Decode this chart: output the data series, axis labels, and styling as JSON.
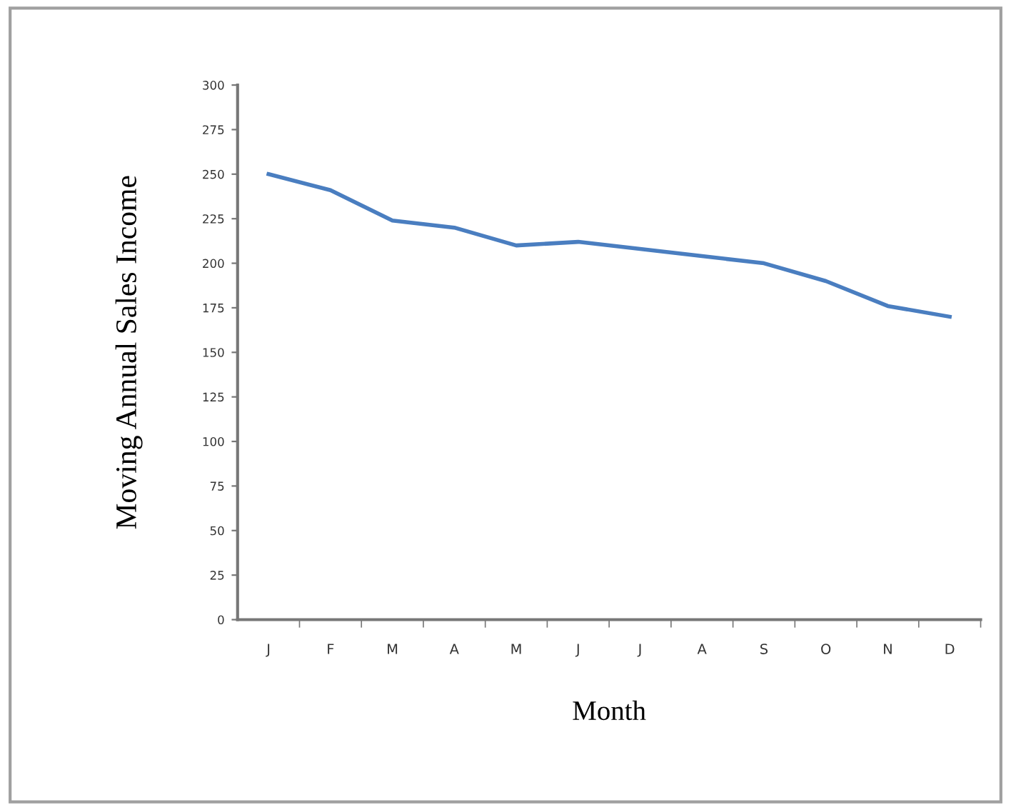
{
  "chart_data": {
    "type": "line",
    "xlabel": "Month",
    "ylabel": "Moving Annual Sales Income",
    "categories": [
      "J",
      "F",
      "M",
      "A",
      "M",
      "J",
      "J",
      "A",
      "S",
      "O",
      "N",
      "D"
    ],
    "series": [
      {
        "color": "#4a7ec0",
        "values": [
          250,
          241,
          224,
          220,
          210,
          212,
          208,
          204,
          200,
          190,
          176,
          170
        ]
      }
    ],
    "ylim": [
      0,
      300
    ],
    "yticks": [
      0,
      25,
      50,
      75,
      100,
      125,
      150,
      175,
      200,
      225,
      250,
      275,
      300
    ],
    "grid": false,
    "marker": "none",
    "line_style": "solid"
  }
}
